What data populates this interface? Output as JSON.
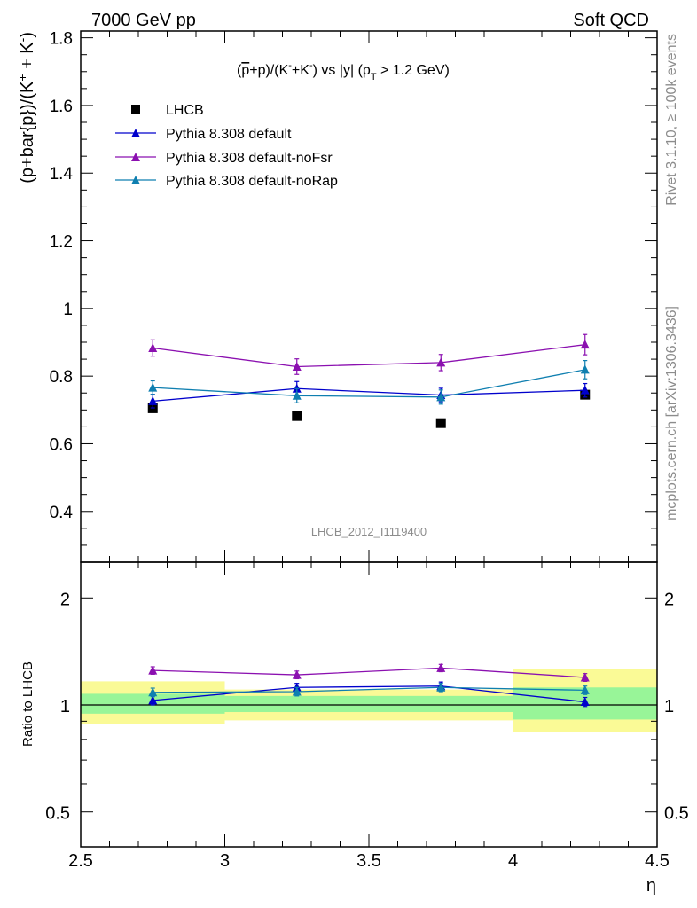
{
  "header": {
    "left": "7000 GeV pp",
    "right": "Soft QCD"
  },
  "side_labels": {
    "rivet": "Rivet 3.1.10, ≥ 100k events",
    "source": "mcplots.cern.ch [arXiv:1306.3436]"
  },
  "chart_data": [
    {
      "type": "scatter",
      "title_parts": {
        "a": "(",
        "pbar": "p",
        "b": "+p)/(K",
        "sup1": "-",
        "c": "+K",
        "sup2": "-",
        "d": ") vs |y| (p",
        "sub": "T",
        "e": " > 1.2 GeV)"
      },
      "ylabel": "(p+bar{p})/(K⁺ + K⁻)",
      "ylabel_parts": {
        "main": "(p+bar{p})/(K",
        "sup1": "+",
        "mid": " + K",
        "sup2": "-",
        "end": ")"
      },
      "analysis_label": "LHCB_2012_I1119400",
      "xlim": [
        2.5,
        4.5
      ],
      "ylim": [
        0.25,
        1.82
      ],
      "yticks": [
        0.4,
        0.6,
        0.8,
        1.0,
        1.2,
        1.4,
        1.6,
        1.8
      ],
      "ytick_labels": [
        "0.4",
        "0.6",
        "0.8",
        "1",
        "1.2",
        "1.4",
        "1.6",
        "1.8"
      ],
      "x": [
        2.75,
        3.25,
        3.75,
        4.25
      ],
      "series": [
        {
          "name": "LHCB",
          "color": "#000000",
          "marker": "square",
          "values": [
            0.705,
            0.682,
            0.661,
            0.745
          ],
          "errors": [
            0,
            0,
            0,
            0
          ]
        },
        {
          "name": "Pythia 8.308 default",
          "color": "#0000cc",
          "marker": "triangle",
          "values": [
            0.726,
            0.763,
            0.744,
            0.758
          ],
          "errors": [
            0.02,
            0.021,
            0.02,
            0.02
          ]
        },
        {
          "name": "Pythia 8.308 default-noFsr",
          "color": "#8b10b0",
          "marker": "triangle",
          "values": [
            0.883,
            0.828,
            0.84,
            0.893
          ],
          "errors": [
            0.024,
            0.023,
            0.024,
            0.03
          ]
        },
        {
          "name": "Pythia 8.308 default-noRap",
          "color": "#0f7fb0",
          "marker": "triangle",
          "values": [
            0.766,
            0.742,
            0.738,
            0.819
          ],
          "errors": [
            0.02,
            0.021,
            0.021,
            0.027
          ]
        }
      ]
    },
    {
      "type": "scatter",
      "ylabel": "Ratio to LHCB",
      "xlabel": "η",
      "xlim": [
        2.5,
        4.5
      ],
      "ylim": [
        0.4,
        2.35
      ],
      "log_y": true,
      "xticks": [
        2.5,
        3.0,
        3.5,
        4.0,
        4.5
      ],
      "xtick_labels": [
        "2.5",
        "3",
        "3.5",
        "4",
        "4.5"
      ],
      "yticks": [
        0.5,
        1.0,
        2.0
      ],
      "ytick_labels": [
        "0.5",
        "1",
        "2"
      ],
      "bands": [
        {
          "x": [
            2.5,
            3.0
          ],
          "inner": [
            0.945,
            1.075
          ],
          "outer": [
            0.885,
            1.165
          ]
        },
        {
          "x": [
            3.0,
            4.0
          ],
          "inner": [
            0.955,
            1.06
          ],
          "outer": [
            0.905,
            1.105
          ]
        },
        {
          "x": [
            4.0,
            4.5
          ],
          "inner": [
            0.91,
            1.12
          ],
          "outer": [
            0.84,
            1.26
          ]
        }
      ],
      "band_colors": {
        "inner": "#98f598",
        "outer": "#fafa96"
      },
      "x": [
        2.75,
        3.25,
        3.75,
        4.25
      ],
      "series": [
        {
          "name": "Pythia 8.308 default",
          "color": "#0000cc",
          "values": [
            1.03,
            1.12,
            1.13,
            1.02
          ],
          "errors": [
            0.03,
            0.03,
            0.03,
            0.03
          ]
        },
        {
          "name": "Pythia 8.308 default-noFsr",
          "color": "#8b10b0",
          "values": [
            1.25,
            1.215,
            1.27,
            1.195
          ],
          "errors": [
            0.03,
            0.03,
            0.03,
            0.03
          ]
        },
        {
          "name": "Pythia 8.308 default-noRap",
          "color": "#0f7fb0",
          "values": [
            1.085,
            1.09,
            1.12,
            1.1
          ],
          "errors": [
            0.03,
            0.03,
            0.03,
            0.03
          ]
        }
      ]
    }
  ]
}
